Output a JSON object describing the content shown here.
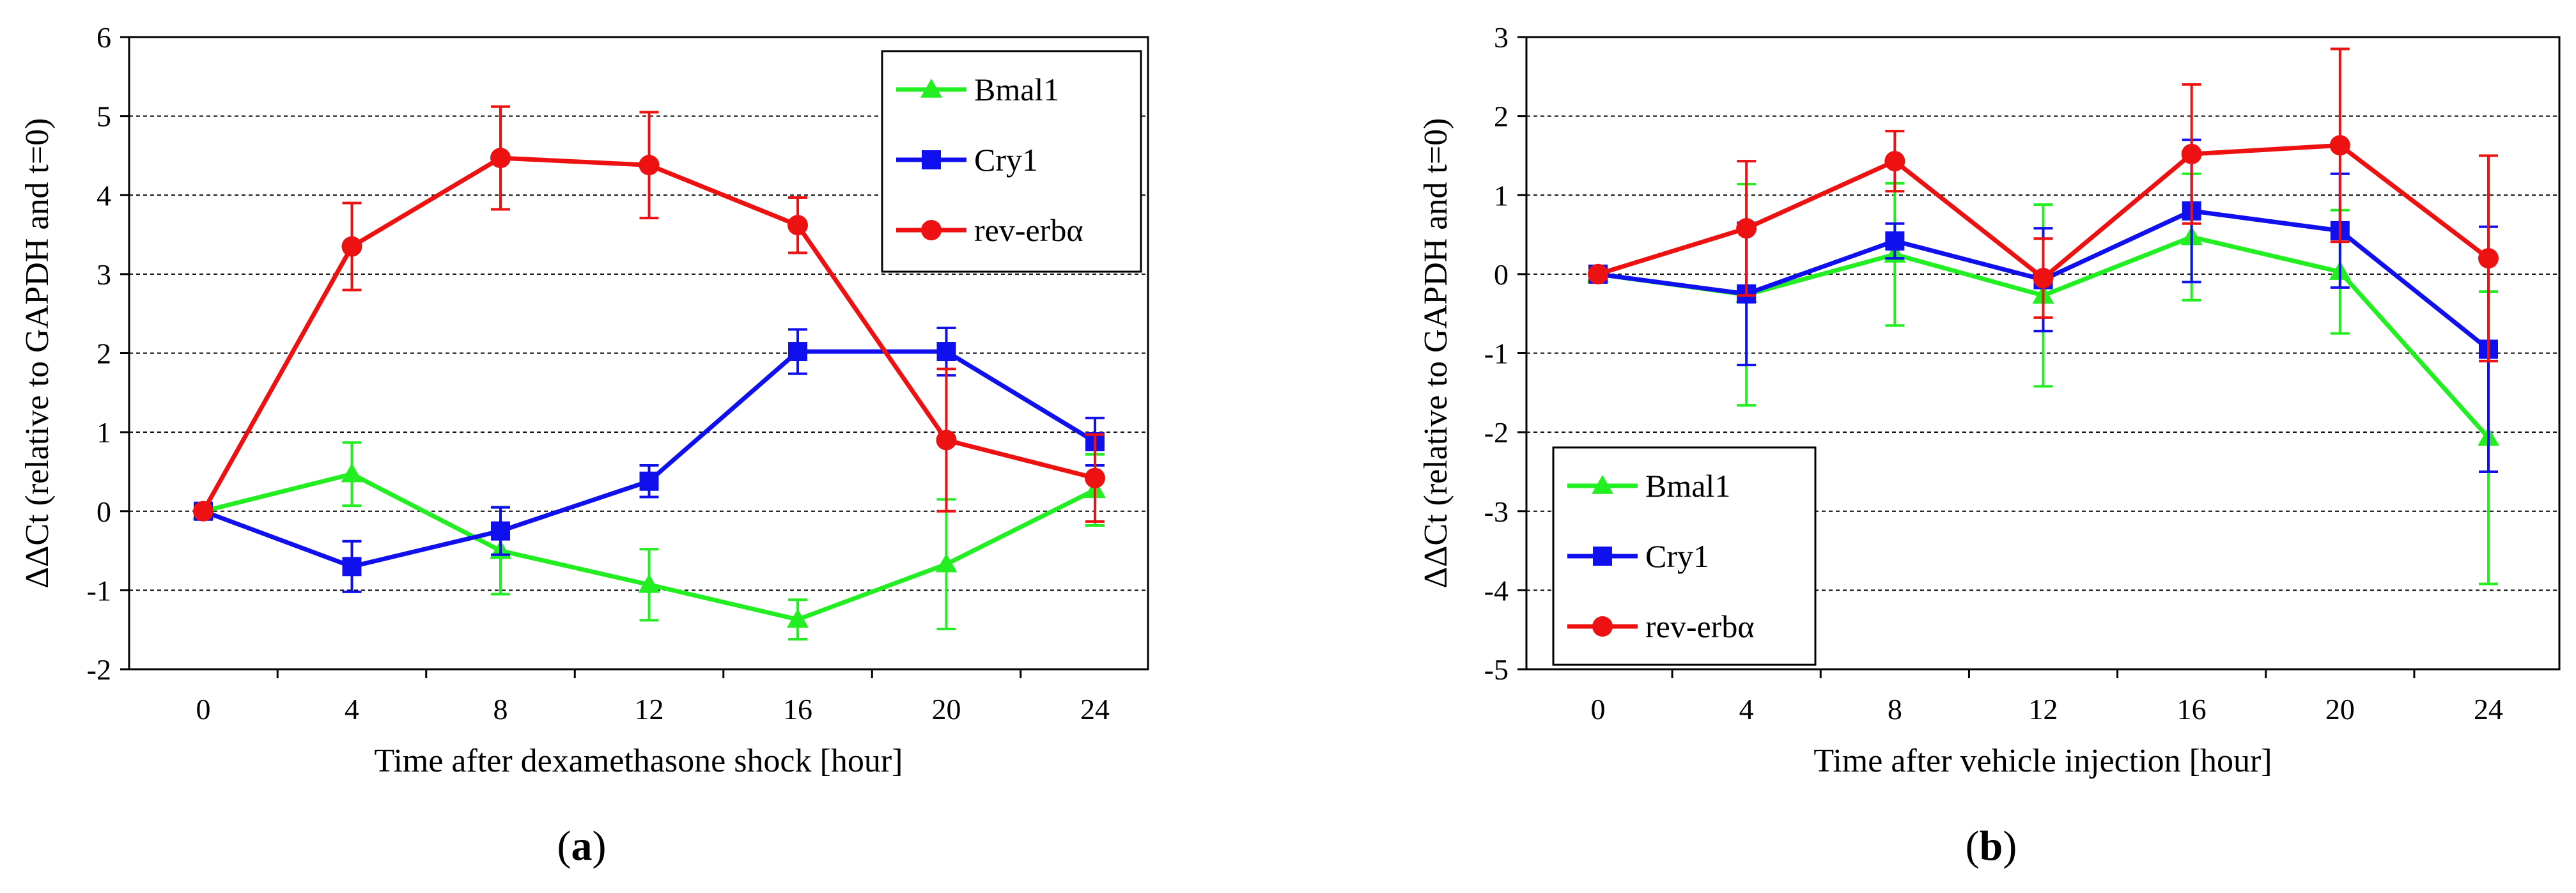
{
  "chart_data": [
    {
      "type": "line",
      "panel_label": "(a)",
      "xlabel": "Time after dexamethasone shock [hour]",
      "ylabel": "ΔΔCt (relative to GAPDH and t=0)",
      "x": [
        0,
        4,
        8,
        12,
        16,
        20,
        24
      ],
      "xticks": [
        "0",
        "4",
        "8",
        "12",
        "16",
        "20",
        "24"
      ],
      "ylim": [
        -2,
        6
      ],
      "yticks": [
        "-2",
        "-1",
        "0",
        "1",
        "2",
        "3",
        "4",
        "5",
        "6"
      ],
      "grid": "horizontal dashed",
      "legend_position": "top-right",
      "series": [
        {
          "name": "Bmal1",
          "color": "#22ee22",
          "marker": "triangle",
          "values": [
            0,
            0.47,
            -0.5,
            -0.93,
            -1.37,
            -0.67,
            0.27
          ],
          "errors": [
            0,
            0.4,
            0.55,
            0.45,
            0.25,
            0.82,
            0.45
          ]
        },
        {
          "name": "Cry1",
          "color": "#1010ee",
          "marker": "square",
          "values": [
            0,
            -0.7,
            -0.25,
            0.38,
            2.02,
            2.02,
            0.88
          ],
          "errors": [
            0,
            0.32,
            0.3,
            0.2,
            0.28,
            0.3,
            0.3
          ]
        },
        {
          "name": "rev-erbα",
          "color": "#ee1111",
          "marker": "circle",
          "values": [
            0,
            3.35,
            4.47,
            4.38,
            3.62,
            0.9,
            0.42
          ],
          "errors": [
            0,
            0.55,
            0.65,
            0.67,
            0.35,
            0.9,
            0.55
          ]
        }
      ]
    },
    {
      "type": "line",
      "panel_label": "(b)",
      "xlabel": "Time after vehicle injection [hour]",
      "ylabel": "ΔΔCt (relative to GAPDH and t=0)",
      "x": [
        0,
        4,
        8,
        12,
        16,
        20,
        24
      ],
      "xticks": [
        "0",
        "4",
        "8",
        "12",
        "16",
        "20",
        "24"
      ],
      "ylim": [
        -5,
        3
      ],
      "yticks": [
        "-5",
        "-4",
        "-3",
        "-2",
        "-1",
        "0",
        "1",
        "2",
        "3"
      ],
      "grid": "horizontal dashed",
      "legend_position": "bottom-left",
      "series": [
        {
          "name": "Bmal1",
          "color": "#22ee22",
          "marker": "triangle",
          "values": [
            0,
            -0.26,
            0.25,
            -0.27,
            0.47,
            0.03,
            -2.07
          ],
          "errors": [
            0,
            1.4,
            0.9,
            1.15,
            0.8,
            0.78,
            1.85
          ]
        },
        {
          "name": "Cry1",
          "color": "#1010ee",
          "marker": "square",
          "values": [
            0,
            -0.25,
            0.42,
            -0.07,
            0.8,
            0.55,
            -0.95
          ],
          "errors": [
            0,
            0.9,
            0.22,
            0.65,
            0.9,
            0.72,
            1.55
          ]
        },
        {
          "name": "rev-erbα",
          "color": "#ee1111",
          "marker": "circle",
          "values": [
            0,
            0.58,
            1.43,
            -0.05,
            1.52,
            1.63,
            0.2
          ],
          "errors": [
            0,
            0.85,
            0.38,
            0.5,
            0.88,
            1.22,
            1.3
          ]
        }
      ]
    }
  ]
}
